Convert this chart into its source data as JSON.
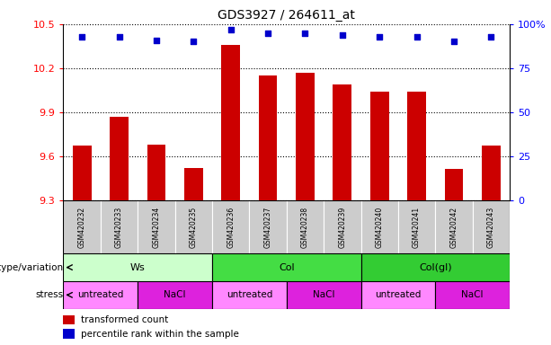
{
  "title": "GDS3927 / 264611_at",
  "samples": [
    "GSM420232",
    "GSM420233",
    "GSM420234",
    "GSM420235",
    "GSM420236",
    "GSM420237",
    "GSM420238",
    "GSM420239",
    "GSM420240",
    "GSM420241",
    "GSM420242",
    "GSM420243"
  ],
  "bar_values": [
    9.67,
    9.87,
    9.68,
    9.52,
    10.36,
    10.15,
    10.17,
    10.09,
    10.04,
    10.04,
    9.51,
    9.67
  ],
  "dot_values": [
    93,
    93,
    91,
    90,
    97,
    95,
    95,
    94,
    93,
    93,
    90,
    93
  ],
  "ylim": [
    9.3,
    10.5
  ],
  "yticks": [
    9.3,
    9.6,
    9.9,
    10.2,
    10.5
  ],
  "right_yticks": [
    0,
    25,
    50,
    75,
    100
  ],
  "right_ylim": [
    0,
    100
  ],
  "bar_color": "#cc0000",
  "dot_color": "#0000cc",
  "bar_bottom": 9.3,
  "genotype_groups": [
    {
      "label": "Ws",
      "start": 0,
      "end": 4,
      "color": "#ccffcc"
    },
    {
      "label": "Col",
      "start": 4,
      "end": 8,
      "color": "#44dd44"
    },
    {
      "label": "Col(gl)",
      "start": 8,
      "end": 12,
      "color": "#44dd44"
    }
  ],
  "stress_groups": [
    {
      "label": "untreated",
      "start": 0,
      "end": 2,
      "color": "#ff88ff"
    },
    {
      "label": "NaCl",
      "start": 2,
      "end": 4,
      "color": "#ee22ee"
    },
    {
      "label": "untreated",
      "start": 4,
      "end": 6,
      "color": "#ff88ff"
    },
    {
      "label": "NaCl",
      "start": 6,
      "end": 8,
      "color": "#ee22ee"
    },
    {
      "label": "untreated",
      "start": 8,
      "end": 10,
      "color": "#ff88ff"
    },
    {
      "label": "NaCl",
      "start": 10,
      "end": 12,
      "color": "#ee22ee"
    }
  ],
  "genotype_label": "genotype/variation",
  "stress_label": "stress",
  "legend_bar_label": "transformed count",
  "legend_dot_label": "percentile rank within the sample",
  "sample_bg_color": "#cccccc",
  "grid_color": "black",
  "fig_width": 6.13,
  "fig_height": 3.84,
  "dpi": 100
}
